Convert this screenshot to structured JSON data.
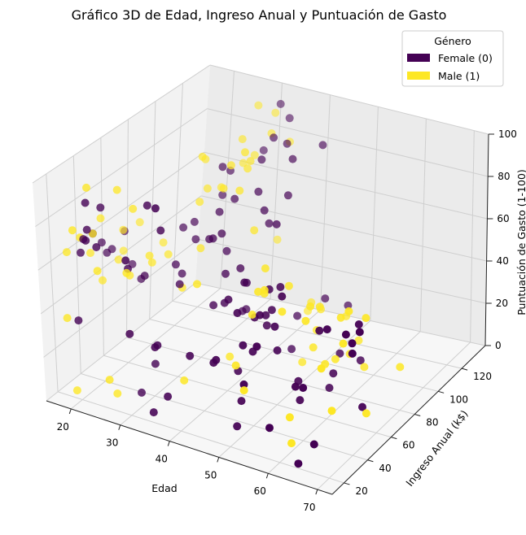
{
  "chart_data": {
    "type": "scatter",
    "projection": "3d",
    "title": "Gráfico 3D de Edad, Ingreso Anual y Puntuación de Gasto",
    "xlabel": "Edad",
    "ylabel": "Ingreso Anual (k$)",
    "zlabel": "Puntuación de Gasto (1-100)",
    "xlim": [
      15,
      73
    ],
    "ylim": [
      10,
      140
    ],
    "zlim": [
      0,
      100
    ],
    "xticks": [
      "20",
      "30",
      "40",
      "50",
      "60",
      "70"
    ],
    "yticks": [
      "20",
      "40",
      "60",
      "80",
      "100",
      "120"
    ],
    "zticks": [
      "0",
      "20",
      "40",
      "60",
      "80",
      "100"
    ],
    "grid": true,
    "legend": {
      "title": "Género",
      "position": "top-right",
      "entries": [
        {
          "label": "Female (0)",
          "color": "#440154"
        },
        {
          "label": "Male (1)",
          "color": "#fde725"
        }
      ]
    },
    "series": [
      {
        "name": "Female (0)",
        "color": "#440154",
        "points": [
          [
            21,
            16,
            39
          ],
          [
            23,
            17,
            77
          ],
          [
            31,
            17,
            40
          ],
          [
            22,
            19,
            76
          ],
          [
            35,
            18,
            6
          ],
          [
            23,
            18,
            94
          ],
          [
            64,
            19,
            3
          ],
          [
            30,
            20,
            72
          ],
          [
            67,
            20,
            14
          ],
          [
            35,
            21,
            35
          ],
          [
            58,
            20,
            15
          ],
          [
            24,
            21,
            73
          ],
          [
            37,
            22,
            13
          ],
          [
            22,
            22,
            79
          ],
          [
            35,
            23,
            35
          ],
          [
            20,
            24,
            66
          ],
          [
            52,
            24,
            29
          ],
          [
            35,
            25,
            98
          ],
          [
            46,
            26,
            35
          ],
          [
            54,
            27,
            47
          ],
          [
            45,
            28,
            32
          ],
          [
            40,
            29,
            31
          ],
          [
            23,
            29,
            87
          ],
          [
            49,
            30,
            4
          ],
          [
            21,
            30,
            73
          ],
          [
            50,
            32,
            42
          ],
          [
            27,
            33,
            60
          ],
          [
            29,
            33,
            4
          ],
          [
            31,
            34,
            92
          ],
          [
            49,
            34,
            14
          ],
          [
            33,
            36,
            81
          ],
          [
            31,
            37,
            17
          ],
          [
            59,
            38,
            26
          ],
          [
            50,
            40,
            35
          ],
          [
            47,
            40,
            51
          ],
          [
            51,
            42,
            52
          ],
          [
            69,
            44,
            46
          ],
          [
            27,
            46,
            51
          ],
          [
            53,
            46,
            46
          ],
          [
            70,
            46,
            56
          ],
          [
            19,
            48,
            55
          ],
          [
            67,
            47,
            52
          ],
          [
            54,
            48,
            60
          ],
          [
            63,
            48,
            51
          ],
          [
            18,
            48,
            59
          ],
          [
            43,
            49,
            50
          ],
          [
            68,
            48,
            48
          ],
          [
            19,
            52,
            55
          ],
          [
            32,
            54,
            47
          ],
          [
            47,
            54,
            42
          ],
          [
            60,
            54,
            45
          ],
          [
            45,
            54,
            57
          ],
          [
            49,
            55,
            44
          ],
          [
            38,
            57,
            40
          ],
          [
            40,
            58,
            42
          ],
          [
            23,
            59,
            41
          ],
          [
            49,
            60,
            44
          ],
          [
            21,
            60,
            46
          ],
          [
            66,
            62,
            48
          ],
          [
            19,
            62,
            59
          ],
          [
            50,
            63,
            54
          ],
          [
            29,
            63,
            50
          ],
          [
            48,
            62,
            52
          ],
          [
            30,
            64,
            46
          ],
          [
            36,
            65,
            66
          ],
          [
            38,
            67,
            50
          ],
          [
            42,
            68,
            48
          ],
          [
            34,
            70,
            62
          ],
          [
            40,
            71,
            52
          ],
          [
            36,
            72,
            65
          ],
          [
            28,
            73,
            62
          ],
          [
            30,
            75,
            57
          ],
          [
            36,
            76,
            55
          ],
          [
            29,
            78,
            63
          ],
          [
            34,
            78,
            71
          ],
          [
            39,
            80,
            28
          ],
          [
            38,
            81,
            26
          ],
          [
            44,
            84,
            69
          ],
          [
            35,
            86,
            74
          ],
          [
            32,
            88,
            86
          ],
          [
            40,
            90,
            70
          ],
          [
            38,
            93,
            76
          ],
          [
            40,
            94,
            62
          ],
          [
            30,
            96,
            68
          ],
          [
            31,
            98,
            79
          ],
          [
            42,
            101,
            73
          ],
          [
            36,
            103,
            85
          ],
          [
            41,
            108,
            86
          ],
          [
            36,
            112,
            91
          ],
          [
            38,
            115,
            88
          ],
          [
            32,
            120,
            79
          ],
          [
            43,
            124,
            86
          ],
          [
            35,
            128,
            92
          ],
          [
            32,
            132,
            95
          ],
          [
            48,
            60,
            36
          ],
          [
            55,
            57,
            16
          ],
          [
            52,
            52,
            31
          ],
          [
            46,
            44,
            21
          ],
          [
            57,
            50,
            12
          ],
          [
            57,
            75,
            5
          ],
          [
            66,
            65,
            7
          ],
          [
            58,
            74,
            13
          ],
          [
            47,
            85,
            12
          ],
          [
            56,
            88,
            14
          ],
          [
            45,
            98,
            20
          ],
          [
            59,
            93,
            10
          ],
          [
            47,
            113,
            22
          ],
          [
            50,
            120,
            17
          ],
          [
            61,
            36,
            28
          ]
        ]
      },
      {
        "name": "Male (1)",
        "color": "#fde725",
        "points": [
          [
            19,
            15,
            39
          ],
          [
            21,
            15,
            81
          ],
          [
            20,
            16,
            6
          ],
          [
            26,
            19,
            14
          ],
          [
            53,
            20,
            29
          ],
          [
            18,
            21,
            66
          ],
          [
            24,
            21,
            62
          ],
          [
            22,
            23,
            98
          ],
          [
            20,
            24,
            73
          ],
          [
            26,
            25,
            5
          ],
          [
            28,
            28,
            61
          ],
          [
            60,
            30,
            4
          ],
          [
            21,
            30,
            73
          ],
          [
            59,
            33,
            14
          ],
          [
            48,
            34,
            30
          ],
          [
            37,
            36,
            14
          ],
          [
            24,
            38,
            92
          ],
          [
            18,
            39,
            58
          ],
          [
            20,
            40,
            75
          ],
          [
            63,
            43,
            35
          ],
          [
            26,
            42,
            83
          ],
          [
            19,
            44,
            44
          ],
          [
            38,
            44,
            56
          ],
          [
            24,
            46,
            49
          ],
          [
            48,
            48,
            47
          ],
          [
            49,
            49,
            58
          ],
          [
            50,
            50,
            59
          ],
          [
            53,
            52,
            50
          ],
          [
            65,
            53,
            43
          ],
          [
            26,
            54,
            56
          ],
          [
            57,
            55,
            47
          ],
          [
            26,
            56,
            52
          ],
          [
            19,
            57,
            48
          ],
          [
            48,
            58,
            52
          ],
          [
            31,
            60,
            42
          ],
          [
            19,
            61,
            60
          ],
          [
            56,
            63,
            49
          ],
          [
            18,
            65,
            48
          ],
          [
            63,
            66,
            50
          ],
          [
            46,
            67,
            58
          ],
          [
            26,
            69,
            50
          ],
          [
            50,
            70,
            51
          ],
          [
            32,
            71,
            56
          ],
          [
            65,
            72,
            45
          ],
          [
            19,
            74,
            58
          ],
          [
            55,
            75,
            42
          ],
          [
            59,
            76,
            39
          ],
          [
            23,
            77,
            50
          ],
          [
            30,
            78,
            73
          ],
          [
            30,
            80,
            93
          ],
          [
            37,
            82,
            81
          ],
          [
            35,
            83,
            91
          ],
          [
            33,
            85,
            78
          ],
          [
            37,
            86,
            97
          ],
          [
            29,
            88,
            74
          ],
          [
            28,
            90,
            86
          ],
          [
            36,
            92,
            86
          ],
          [
            30,
            95,
            72
          ],
          [
            35,
            98,
            86
          ],
          [
            32,
            103,
            92
          ],
          [
            31,
            108,
            78
          ],
          [
            32,
            113,
            80
          ],
          [
            34,
            118,
            89
          ],
          [
            36,
            125,
            83
          ],
          [
            28,
            130,
            93
          ],
          [
            30,
            136,
            88
          ],
          [
            39,
            86,
            62
          ],
          [
            48,
            90,
            4
          ],
          [
            58,
            88,
            15
          ],
          [
            53,
            78,
            20
          ],
          [
            57,
            80,
            16
          ],
          [
            60,
            92,
            8
          ],
          [
            52,
            110,
            18
          ],
          [
            56,
            104,
            12
          ],
          [
            66,
            97,
            9
          ],
          [
            42,
            120,
            10
          ],
          [
            44,
            114,
            18
          ],
          [
            34,
            126,
            36
          ],
          [
            52,
            85,
            24
          ],
          [
            68,
            60,
            8
          ],
          [
            67,
            35,
            22
          ],
          [
            40,
            62,
            15
          ],
          [
            49,
            101,
            24
          ],
          [
            58,
            67,
            21
          ]
        ]
      }
    ]
  }
}
